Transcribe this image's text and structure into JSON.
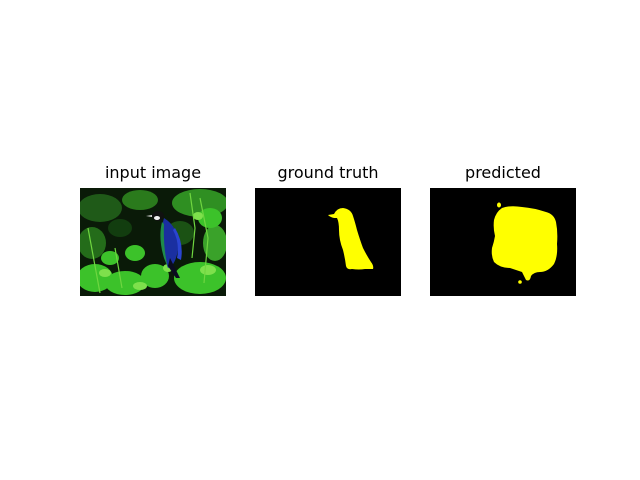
{
  "panels": [
    {
      "title": "input image"
    },
    {
      "title": "ground truth"
    },
    {
      "title": "predicted"
    }
  ],
  "colors": {
    "mask_background": "#000000",
    "mask_foreground": "#ffff00",
    "foliage_green": "#2fb21f",
    "bird_blue": "#1a2fa0"
  }
}
